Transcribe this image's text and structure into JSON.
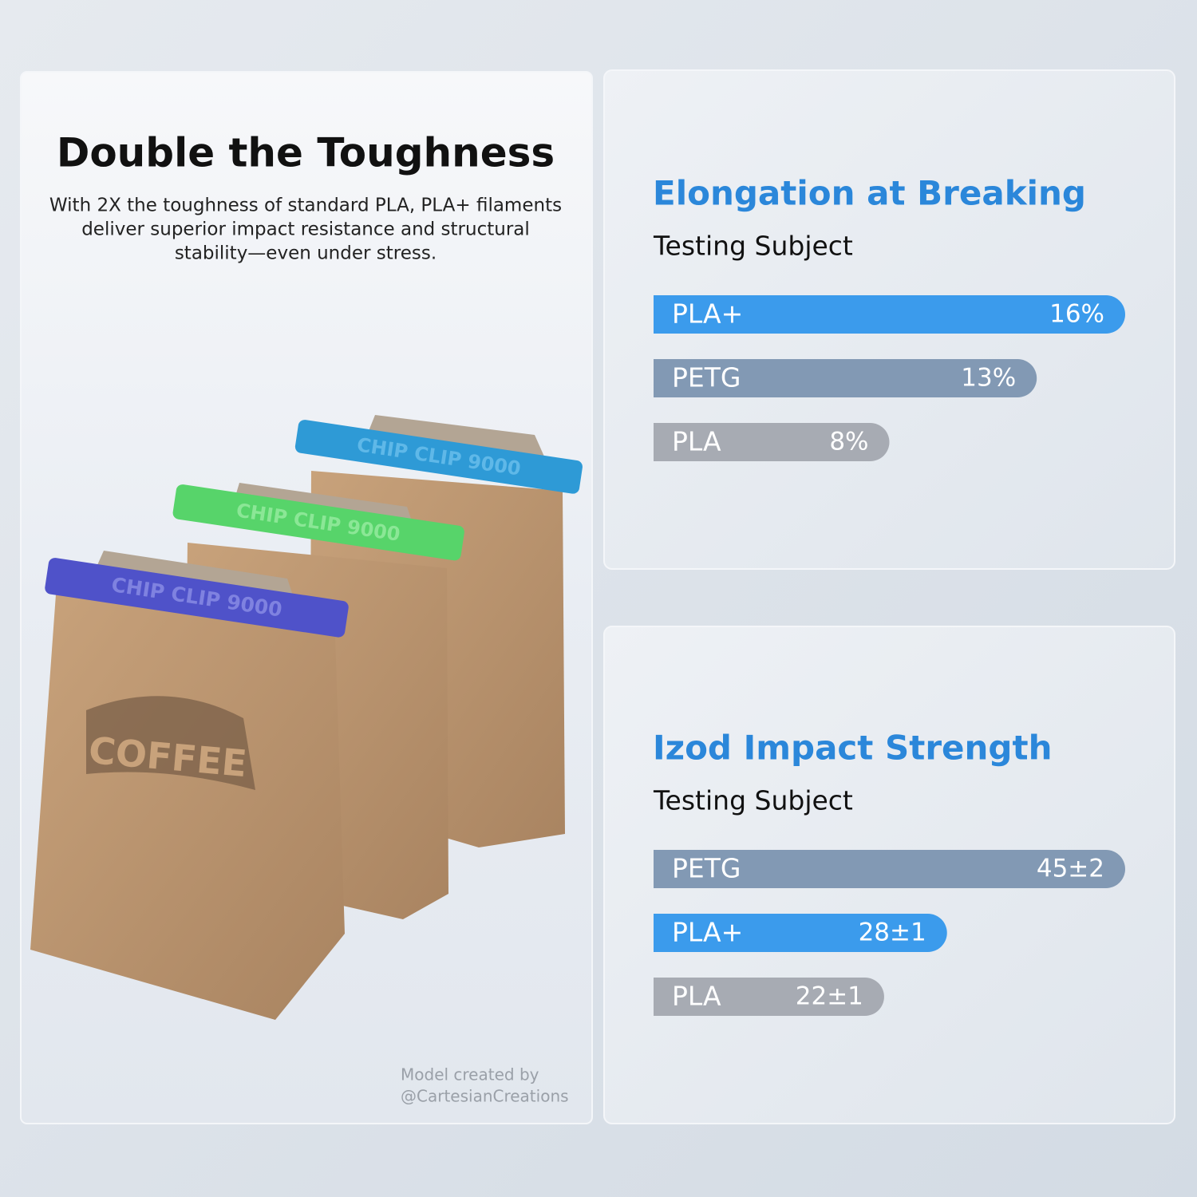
{
  "header": {
    "title": "Double the Toughness",
    "description_lines": [
      "With 2X the toughness of standard PLA, PLA+ filaments",
      "deliver superior impact resistance and structural",
      "stability—even under stress."
    ]
  },
  "photo": {
    "clip_labels": [
      "CHIP CLIP 9000",
      "CHIP CLIP 9000",
      "CHIP CLIP 9000"
    ],
    "bag_label": "COFFEE"
  },
  "credit": {
    "lines": [
      "Model created by",
      "@CartesianCreations"
    ]
  },
  "chart_data": [
    {
      "type": "bar",
      "orientation": "horizontal",
      "title": "Elongation at Breaking",
      "subtitle": "Testing Subject",
      "categories": [
        "PLA+",
        "PETG",
        "PLA"
      ],
      "values": [
        16,
        13,
        8
      ],
      "value_labels": [
        "16%",
        "13%",
        "8%"
      ],
      "colors": [
        "#3b9bec",
        "#8299b4",
        "#a7abb3"
      ]
    },
    {
      "type": "bar",
      "orientation": "horizontal",
      "title": "Izod Impact Strength",
      "subtitle": "Testing Subject",
      "categories": [
        "PETG",
        "PLA+",
        "PLA"
      ],
      "values": [
        45,
        28,
        22
      ],
      "value_labels": [
        "45±2",
        "28±1",
        "22±1"
      ],
      "colors": [
        "#8299b4",
        "#3b9bec",
        "#a7abb3"
      ]
    }
  ]
}
